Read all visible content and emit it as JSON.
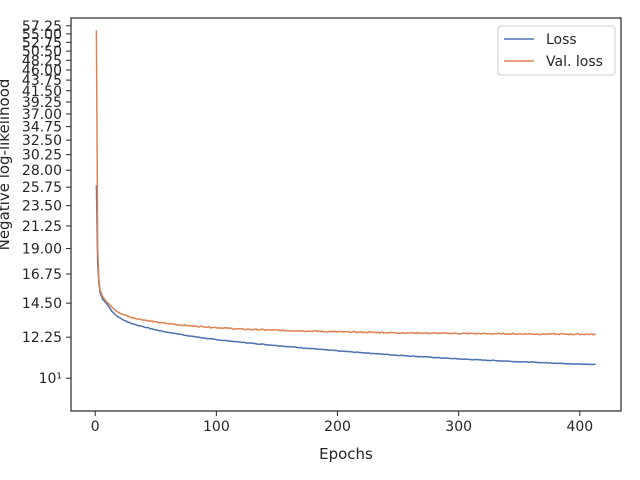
{
  "chart_data": {
    "type": "line",
    "title": "",
    "xlabel": "Epochs",
    "ylabel": "Negative log-likelihood",
    "yscale": "log",
    "xlim": [
      -20,
      434
    ],
    "ylim": [
      8.5,
      59.5
    ],
    "x_ticks": [
      0,
      100,
      200,
      300,
      400
    ],
    "x_tick_labels": [
      "0",
      "100",
      "200",
      "300",
      "400"
    ],
    "y_ticks": [
      10,
      12.25,
      14.5,
      16.75,
      19.0,
      21.25,
      23.5,
      25.75,
      28.0,
      30.25,
      32.5,
      34.75,
      37.0,
      39.25,
      41.5,
      43.75,
      46.0,
      48.25,
      50.5,
      52.75,
      55.0,
      57.25
    ],
    "y_tick_labels": [
      "10¹",
      "12.25",
      "14.50",
      "16.75",
      "19.00",
      "21.25",
      "23.50",
      "25.75",
      "28.00",
      "30.25",
      "32.50",
      "34.75",
      "37.00",
      "39.25",
      "41.50",
      "43.75",
      "46.00",
      "48.25",
      "50.50",
      "52.75",
      "55.00",
      "57.25"
    ],
    "grid": false,
    "legend": {
      "position": "top-right"
    },
    "series": [
      {
        "name": "Loss",
        "color": "#4c72b0",
        "x": [
          1,
          2,
          3,
          4,
          6,
          8,
          10,
          14,
          18,
          22,
          30,
          40,
          50,
          60,
          80,
          100,
          120,
          150,
          200,
          250,
          300,
          350,
          400,
          413
        ],
        "y": [
          26.0,
          17.5,
          16.0,
          15.3,
          14.8,
          14.6,
          14.4,
          13.9,
          13.6,
          13.4,
          13.1,
          12.9,
          12.7,
          12.55,
          12.3,
          12.1,
          11.95,
          11.75,
          11.45,
          11.2,
          11.0,
          10.85,
          10.72,
          10.7
        ]
      },
      {
        "name": "Val. loss",
        "color": "#dd8452",
        "x": [
          1,
          2,
          3,
          4,
          6,
          8,
          10,
          14,
          18,
          22,
          30,
          40,
          50,
          60,
          80,
          100,
          120,
          150,
          200,
          250,
          300,
          350,
          400,
          413
        ],
        "y": [
          56.0,
          19.0,
          16.3,
          15.5,
          15.0,
          14.75,
          14.55,
          14.2,
          13.9,
          13.75,
          13.5,
          13.35,
          13.2,
          13.1,
          12.95,
          12.85,
          12.75,
          12.68,
          12.58,
          12.52,
          12.48,
          12.45,
          12.43,
          12.42
        ]
      }
    ]
  }
}
